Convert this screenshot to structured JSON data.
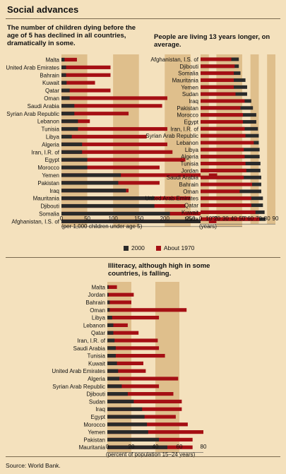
{
  "title": "Social advances",
  "legend": {
    "a": "2000",
    "b": "About 1970"
  },
  "colors": {
    "bg": "#f4e1bd",
    "band": "#dfbf8c",
    "bar2000": "#2a2a2a",
    "bar1970": "#a50f14"
  },
  "source": "Source: World Bank.",
  "chart_data": [
    {
      "type": "bar",
      "orientation": "horizontal",
      "title": "The number of children dying before the age of 5 has declined in all countries, dramatically in some.",
      "xlabel": "(per 1,000 children under age 5)",
      "xlim": [
        0,
        350
      ],
      "xticks": [
        0,
        50,
        100,
        150,
        200,
        250,
        300,
        350
      ],
      "series_names": [
        "2000",
        "About 1970"
      ],
      "categories": [
        "Malta",
        "United Arab Emirates",
        "Bahrain",
        "Kuwait",
        "Qatar",
        "Oman",
        "Saudi Arabia",
        "Syrian Arab Republic",
        "Lebanon",
        "Tunisia",
        "Libya",
        "Algeria",
        "Iran, I.R. of",
        "Egypt",
        "Morocco",
        "Yemen",
        "Pakistan",
        "Iraq",
        "Mauritania",
        "Djibouti",
        "Somalia",
        "Afghanistan, I.S. of"
      ],
      "y2000": [
        6,
        9,
        9,
        10,
        16,
        16,
        25,
        25,
        32,
        32,
        20,
        40,
        40,
        50,
        50,
        115,
        110,
        125,
        180,
        180,
        210,
        280
      ],
      "y1970": [
        30,
        95,
        95,
        65,
        95,
        205,
        195,
        130,
        55,
        205,
        165,
        205,
        215,
        240,
        190,
        310,
        190,
        130,
        250,
        240,
        270,
        300
      ]
    },
    {
      "type": "bar",
      "orientation": "horizontal",
      "title": "People are living 13 years longer, on average.",
      "xlabel": "(years)",
      "xlim": [
        0,
        90
      ],
      "xticks": [
        0,
        10,
        20,
        30,
        40,
        50,
        60,
        70,
        80,
        90
      ],
      "series_names": [
        "2000",
        "About 1970"
      ],
      "categories": [
        "Afghanistan, I.S. of",
        "Djibouti",
        "Somalia",
        "Mauritania",
        "Yemen",
        "Sudan",
        "Iraq",
        "Pakistan",
        "Morocco",
        "Egypt",
        "Iran, I.R. of",
        "Syrian Arab Republic",
        "Lebanon",
        "Libya",
        "Algeria",
        "Tunisia",
        "Jordan",
        "Saudi Arabia",
        "Bahrain",
        "Oman",
        "United Arab Emirates",
        "Qatar",
        "Kuwait",
        "Malta"
      ],
      "y2000": [
        46,
        46,
        48,
        54,
        56,
        56,
        61,
        63,
        67,
        67,
        69,
        70,
        70,
        71,
        71,
        72,
        72,
        73,
        73,
        73,
        75,
        75,
        77,
        78
      ],
      "y1970": [
        37,
        41,
        40,
        40,
        40,
        42,
        53,
        48,
        51,
        51,
        53,
        54,
        64,
        52,
        53,
        54,
        55,
        52,
        62,
        47,
        61,
        61,
        66,
        71
      ]
    },
    {
      "type": "bar",
      "orientation": "horizontal",
      "title": "Illiteracy, although high in some countries, is falling.",
      "xlabel": "(percent of population 15–24 years)",
      "xlim": [
        0,
        80
      ],
      "xticks": [
        0,
        20,
        40,
        60,
        80
      ],
      "series_names": [
        "2000",
        "About 1970"
      ],
      "categories": [
        "Malta",
        "Jordan",
        "Bahrain",
        "Oman",
        "Libya",
        "Lebanon",
        "Qatar",
        "Iran, I.R. of",
        "Saudi Arabia",
        "Tunisia",
        "Kuwait",
        "United Arab Emirates",
        "Algeria",
        "Syrian Arab Republic",
        "Djibouti",
        "Sudan",
        "Iraq",
        "Egypt",
        "Morocco",
        "Yemen",
        "Pakistan",
        "Mauritania"
      ],
      "y2000": [
        1,
        1,
        2,
        2,
        4,
        5,
        5,
        6,
        7,
        7,
        8,
        9,
        10,
        12,
        17,
        22,
        29,
        31,
        33,
        34,
        43,
        50
      ],
      "y1970": [
        8,
        22,
        20,
        66,
        43,
        17,
        26,
        42,
        43,
        48,
        30,
        32,
        59,
        43,
        55,
        62,
        62,
        57,
        67,
        80,
        71,
        71
      ]
    }
  ]
}
